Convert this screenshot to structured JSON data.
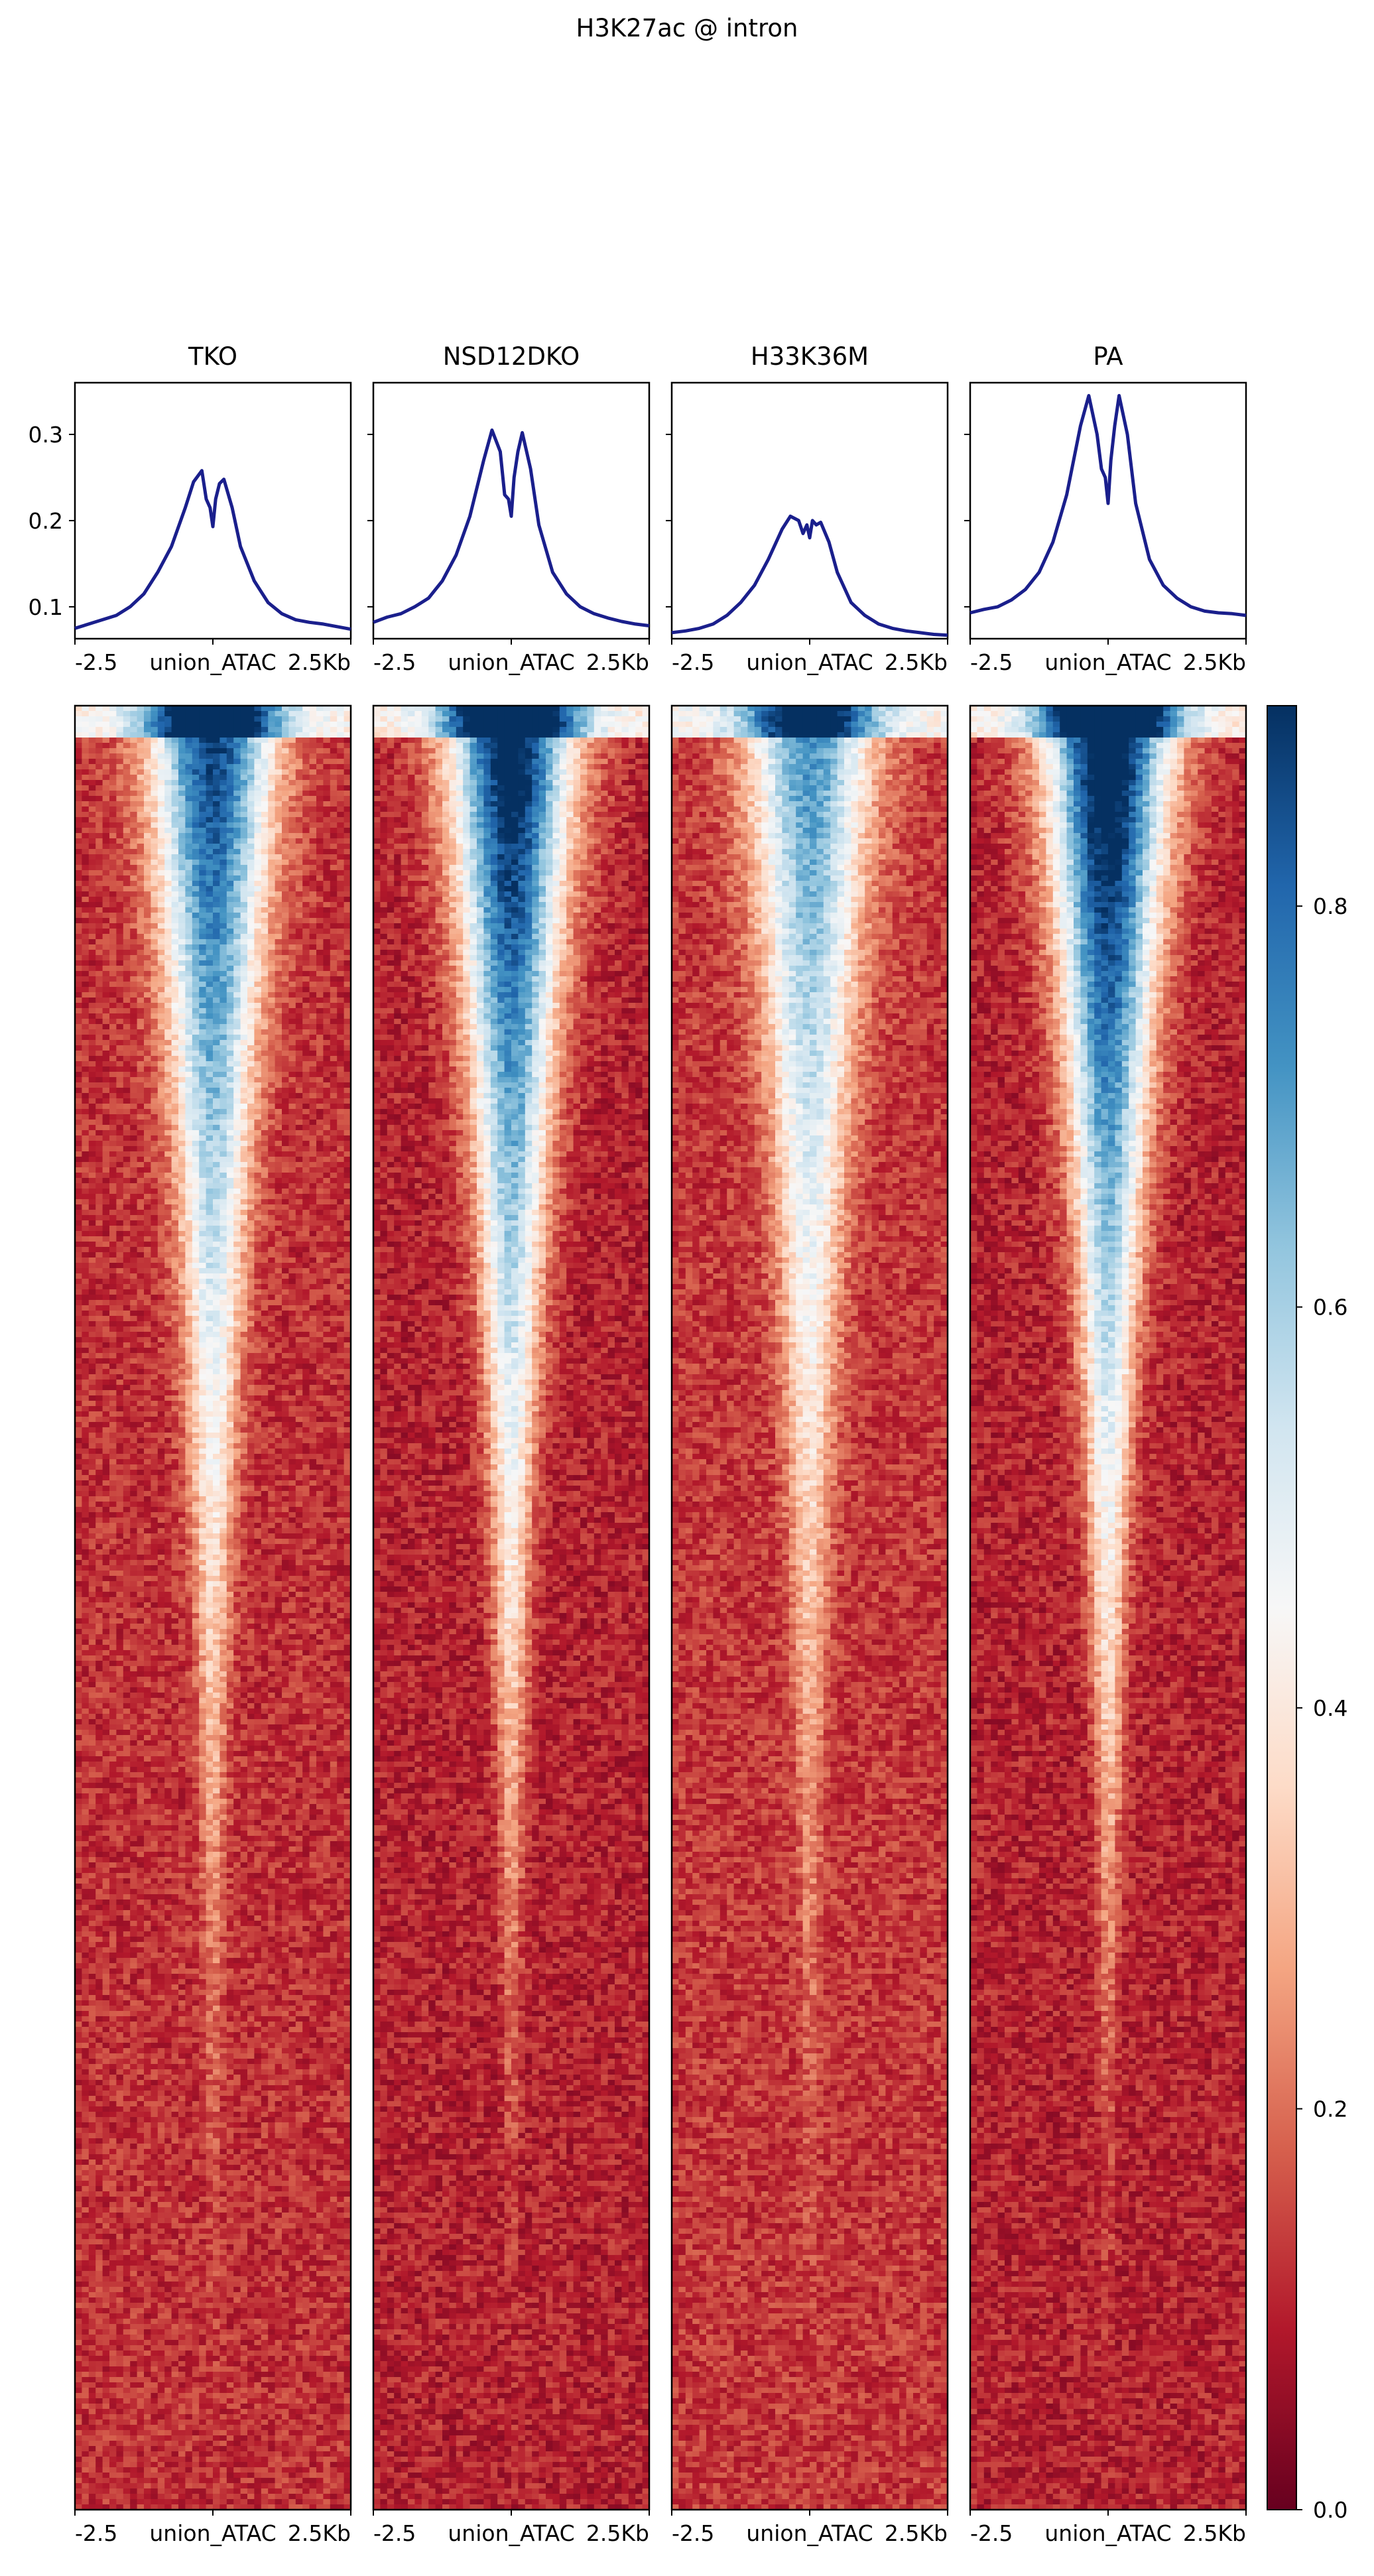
{
  "chart_data": {
    "type": "line",
    "title": "H3K27ac @ intron",
    "x_tick_labels": [
      "-2.5",
      "union_ATAC",
      "2.5Kb"
    ],
    "x_range": [
      -2.5,
      2.5
    ],
    "profile_ylim": [
      0.063,
      0.36
    ],
    "profile_yticks": [
      0.1,
      0.2,
      0.3
    ],
    "line_color": "#1a1f8c",
    "x": [
      -2.5,
      -2.25,
      -2.0,
      -1.75,
      -1.5,
      -1.25,
      -1.0,
      -0.75,
      -0.5,
      -0.35,
      -0.2,
      -0.12,
      -0.05,
      0.0,
      0.05,
      0.12,
      0.2,
      0.35,
      0.5,
      0.75,
      1.0,
      1.25,
      1.5,
      1.75,
      2.0,
      2.25,
      2.5
    ],
    "series": [
      {
        "name": "TKO",
        "values": [
          0.075,
          0.08,
          0.085,
          0.09,
          0.1,
          0.115,
          0.14,
          0.17,
          0.215,
          0.245,
          0.258,
          0.225,
          0.215,
          0.193,
          0.225,
          0.243,
          0.248,
          0.215,
          0.17,
          0.13,
          0.105,
          0.092,
          0.085,
          0.082,
          0.08,
          0.077,
          0.074
        ]
      },
      {
        "name": "NSD12DKO",
        "values": [
          0.082,
          0.088,
          0.092,
          0.1,
          0.11,
          0.13,
          0.16,
          0.205,
          0.27,
          0.305,
          0.28,
          0.23,
          0.225,
          0.205,
          0.25,
          0.28,
          0.302,
          0.26,
          0.195,
          0.14,
          0.115,
          0.1,
          0.092,
          0.087,
          0.083,
          0.08,
          0.078
        ]
      },
      {
        "name": "H33K36M",
        "values": [
          0.07,
          0.072,
          0.075,
          0.08,
          0.09,
          0.105,
          0.125,
          0.155,
          0.19,
          0.205,
          0.2,
          0.185,
          0.195,
          0.18,
          0.2,
          0.195,
          0.198,
          0.175,
          0.14,
          0.105,
          0.09,
          0.08,
          0.075,
          0.072,
          0.07,
          0.068,
          0.067
        ]
      },
      {
        "name": "PA",
        "values": [
          0.093,
          0.097,
          0.1,
          0.108,
          0.12,
          0.14,
          0.175,
          0.23,
          0.31,
          0.345,
          0.3,
          0.26,
          0.25,
          0.22,
          0.27,
          0.31,
          0.345,
          0.3,
          0.22,
          0.155,
          0.125,
          0.11,
          0.1,
          0.095,
          0.093,
          0.092,
          0.09
        ]
      }
    ],
    "heatmap": {
      "type": "heatmap",
      "colormap": "RdBu",
      "vmin": 0.0,
      "vmax": 0.9,
      "colorbar_ticks": [
        "0.0",
        "0.2",
        "0.4",
        "0.6",
        "0.8"
      ],
      "peak_scale": [
        0.78,
        0.9,
        0.62,
        0.95
      ],
      "background": [
        0.12,
        0.1,
        0.13,
        0.1
      ]
    }
  }
}
